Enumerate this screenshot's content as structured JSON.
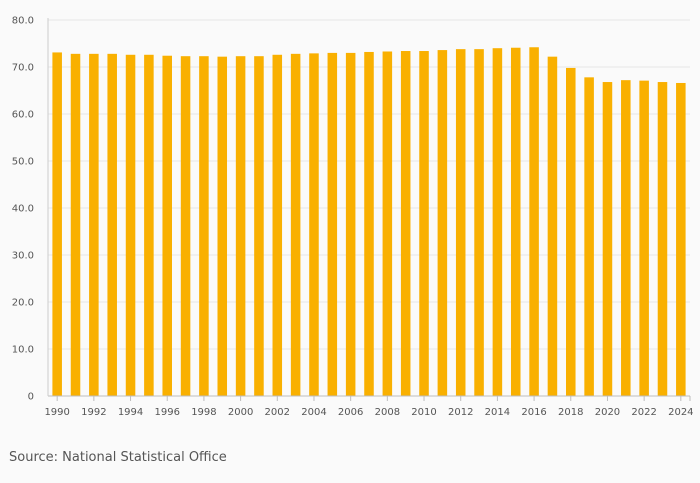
{
  "source": "Source: National Statistical Office",
  "chart_data": {
    "type": "bar",
    "categories": [
      "1990",
      "1991",
      "1992",
      "1993",
      "1994",
      "1995",
      "1996",
      "1997",
      "1998",
      "1999",
      "2000",
      "2001",
      "2002",
      "2003",
      "2004",
      "2005",
      "2006",
      "2007",
      "2008",
      "2009",
      "2010",
      "2011",
      "2012",
      "2013",
      "2014",
      "2015",
      "2016",
      "2017",
      "2018",
      "2019",
      "2020",
      "2021",
      "2022",
      "2023",
      "2024"
    ],
    "x_tick_labels": [
      "1990",
      "1992",
      "1994",
      "1996",
      "1998",
      "2000",
      "2002",
      "2004",
      "2006",
      "2008",
      "2010",
      "2012",
      "2014",
      "2016",
      "2018",
      "2020",
      "2022",
      "2024"
    ],
    "values": [
      73.1,
      72.8,
      72.8,
      72.8,
      72.6,
      72.6,
      72.4,
      72.3,
      72.3,
      72.2,
      72.3,
      72.3,
      72.6,
      72.8,
      72.9,
      73.0,
      73.0,
      73.2,
      73.3,
      73.4,
      73.4,
      73.6,
      73.8,
      73.8,
      74.0,
      74.1,
      74.2,
      72.2,
      69.8,
      67.8,
      66.8,
      67.2,
      67.1,
      66.8,
      66.6
    ],
    "ylim": [
      0,
      80
    ],
    "y_ticks": [
      0,
      10,
      20,
      30,
      40,
      50,
      60,
      70,
      80
    ],
    "y_tick_labels": [
      "0",
      "10.0",
      "20.0",
      "30.0",
      "40.0",
      "50.0",
      "60.0",
      "70.0",
      "80.0"
    ],
    "bar_color": "#f9b000",
    "grid": true,
    "title": "",
    "xlabel": "",
    "ylabel": ""
  }
}
